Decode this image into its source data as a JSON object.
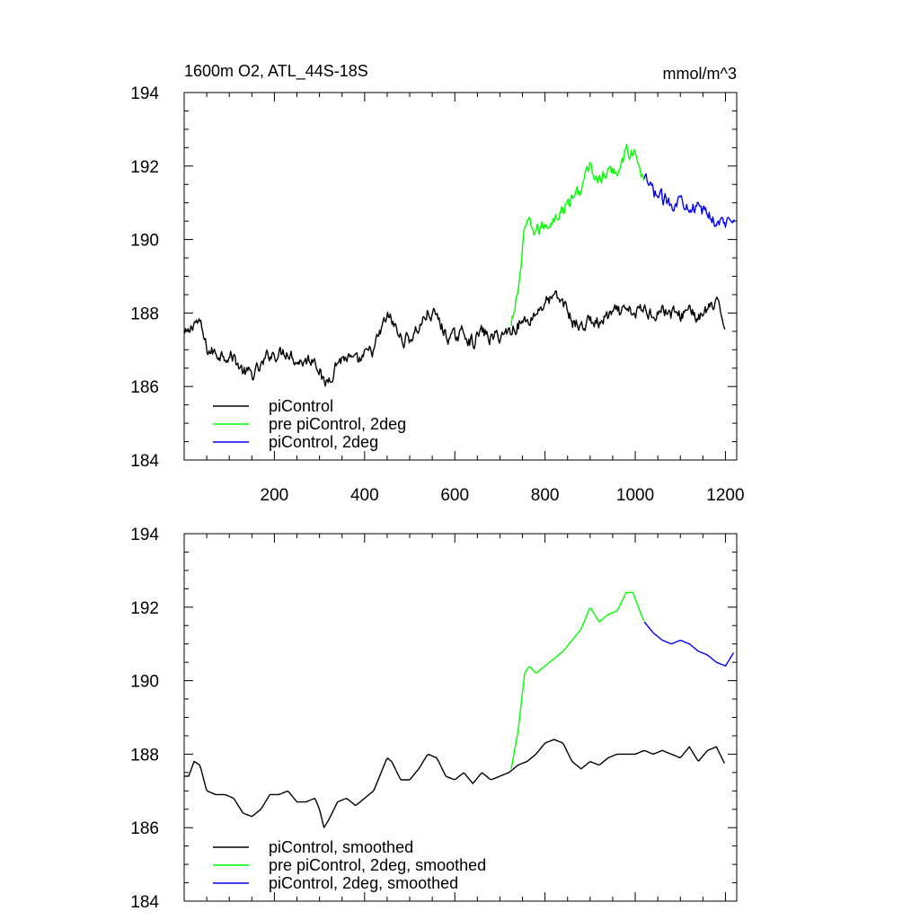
{
  "chart_data": [
    {
      "type": "line",
      "title": "1600m O2, ATL_44S-18S",
      "units": "mmol/m^3",
      "xlim": [
        0,
        1225
      ],
      "ylim": [
        184,
        194
      ],
      "xticks": [
        200,
        400,
        600,
        800,
        1000,
        1200
      ],
      "xtick_labels": [
        "200",
        "400",
        "600",
        "800",
        "1000",
        "1200"
      ],
      "yticks": [
        184,
        186,
        188,
        190,
        192,
        194
      ],
      "ytick_labels": [
        "184",
        "186",
        "188",
        "190",
        "192",
        "194"
      ],
      "grid": false,
      "legend_position": "bottom-left",
      "series": [
        {
          "name": "piControl",
          "color": "#000000",
          "noise": 0.16,
          "x": [
            1,
            10,
            22,
            35,
            50,
            70,
            90,
            110,
            130,
            150,
            170,
            190,
            210,
            230,
            250,
            270,
            290,
            300,
            310,
            320,
            340,
            360,
            380,
            400,
            420,
            440,
            450,
            460,
            480,
            500,
            520,
            540,
            560,
            580,
            600,
            620,
            640,
            660,
            680,
            700,
            720,
            740,
            760,
            780,
            800,
            820,
            840,
            860,
            880,
            900,
            920,
            940,
            960,
            980,
            1000,
            1020,
            1040,
            1060,
            1080,
            1100,
            1120,
            1140,
            1160,
            1180,
            1200
          ],
          "y": [
            187.4,
            187.4,
            187.8,
            187.7,
            187.0,
            186.9,
            186.9,
            186.8,
            186.4,
            186.3,
            186.5,
            186.9,
            186.9,
            187.0,
            186.7,
            186.7,
            186.8,
            186.5,
            186.0,
            186.2,
            186.7,
            186.8,
            186.6,
            186.8,
            187.0,
            187.6,
            187.9,
            187.8,
            187.3,
            187.3,
            187.6,
            188.0,
            187.9,
            187.4,
            187.3,
            187.5,
            187.2,
            187.5,
            187.3,
            187.4,
            187.5,
            187.7,
            187.8,
            188.0,
            188.3,
            188.4,
            188.3,
            187.8,
            187.6,
            187.8,
            187.7,
            187.9,
            188.0,
            188.0,
            188.0,
            188.1,
            188.0,
            188.1,
            188.0,
            187.9,
            188.2,
            187.8,
            188.1,
            188.2,
            187.7
          ]
        },
        {
          "name": "pre piControl, 2deg",
          "color": "#00ff00",
          "noise": 0.16,
          "x": [
            725,
            740,
            755,
            765,
            780,
            800,
            820,
            840,
            860,
            880,
            900,
            920,
            940,
            960,
            980,
            995,
            1010,
            1020
          ],
          "y": [
            187.6,
            188.6,
            190.2,
            190.4,
            190.2,
            190.4,
            190.6,
            190.8,
            191.1,
            191.4,
            192.0,
            191.6,
            191.8,
            191.9,
            192.4,
            192.4,
            191.9,
            191.6
          ]
        },
        {
          "name": "piControl, 2deg",
          "color": "#0000ff",
          "noise": 0.16,
          "x": [
            1020,
            1040,
            1060,
            1080,
            1100,
            1120,
            1140,
            1160,
            1180,
            1200,
            1220
          ],
          "y": [
            191.6,
            191.3,
            191.1,
            191.0,
            191.1,
            191.0,
            190.8,
            190.7,
            190.5,
            190.4,
            190.8
          ]
        }
      ]
    },
    {
      "type": "line",
      "title": "",
      "units": "",
      "xlim": [
        0,
        1225
      ],
      "ylim": [
        184,
        194
      ],
      "xticks": [
        200,
        400,
        600,
        800,
        1000,
        1200
      ],
      "xtick_labels": [],
      "yticks": [
        184,
        186,
        188,
        190,
        192,
        194
      ],
      "ytick_labels": [
        "184",
        "186",
        "188",
        "190",
        "192",
        "194"
      ],
      "grid": false,
      "legend_position": "bottom-left",
      "series": [
        {
          "name": "piControl, smoothed",
          "color": "#000000",
          "noise": 0,
          "x": [
            1,
            10,
            22,
            35,
            50,
            70,
            90,
            110,
            130,
            150,
            170,
            190,
            210,
            230,
            250,
            270,
            290,
            300,
            310,
            320,
            340,
            360,
            380,
            400,
            420,
            440,
            450,
            460,
            480,
            500,
            520,
            540,
            560,
            580,
            600,
            620,
            640,
            660,
            680,
            700,
            720,
            740,
            760,
            780,
            800,
            820,
            840,
            860,
            880,
            900,
            920,
            940,
            960,
            980,
            1000,
            1020,
            1040,
            1060,
            1080,
            1100,
            1120,
            1140,
            1160,
            1180,
            1200
          ],
          "y": [
            187.4,
            187.4,
            187.8,
            187.7,
            187.0,
            186.9,
            186.9,
            186.8,
            186.4,
            186.3,
            186.5,
            186.9,
            186.9,
            187.0,
            186.7,
            186.7,
            186.8,
            186.5,
            186.0,
            186.2,
            186.7,
            186.8,
            186.6,
            186.8,
            187.0,
            187.6,
            187.9,
            187.8,
            187.3,
            187.3,
            187.6,
            188.0,
            187.9,
            187.4,
            187.3,
            187.5,
            187.2,
            187.5,
            187.3,
            187.4,
            187.5,
            187.7,
            187.8,
            188.0,
            188.3,
            188.4,
            188.3,
            187.8,
            187.6,
            187.8,
            187.7,
            187.9,
            188.0,
            188.0,
            188.0,
            188.1,
            188.0,
            188.1,
            188.0,
            187.9,
            188.2,
            187.8,
            188.1,
            188.2,
            187.7
          ]
        },
        {
          "name": "pre piControl, 2deg, smoothed",
          "color": "#00ff00",
          "noise": 0,
          "x": [
            725,
            740,
            755,
            765,
            780,
            800,
            820,
            840,
            860,
            880,
            900,
            920,
            940,
            960,
            980,
            995,
            1010,
            1020
          ],
          "y": [
            187.6,
            188.6,
            190.2,
            190.4,
            190.2,
            190.4,
            190.6,
            190.8,
            191.1,
            191.4,
            192.0,
            191.6,
            191.8,
            191.9,
            192.4,
            192.4,
            191.9,
            191.6
          ]
        },
        {
          "name": "piControl, 2deg, smoothed",
          "color": "#0000ff",
          "noise": 0,
          "x": [
            1020,
            1040,
            1060,
            1080,
            1100,
            1120,
            1140,
            1160,
            1180,
            1200,
            1220
          ],
          "y": [
            191.6,
            191.3,
            191.1,
            191.0,
            191.1,
            191.0,
            190.8,
            190.7,
            190.5,
            190.4,
            190.8
          ]
        }
      ]
    }
  ]
}
